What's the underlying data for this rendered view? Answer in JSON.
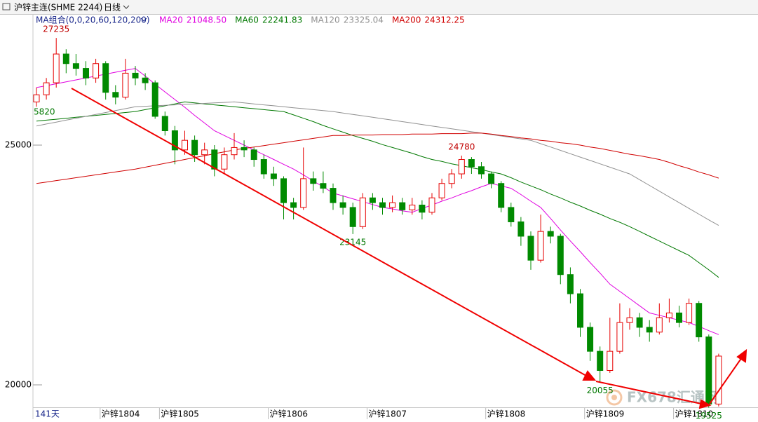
{
  "chart_data": {
    "type": "candlestick",
    "title": "沪锌主连(SHME 2244)",
    "period": "日线",
    "indicator": "MA组合(0,0,20,60,120,200)",
    "day_count": "141天",
    "side_label": "5820",
    "watermark": "FX678汇通网",
    "up_color": "#e60000",
    "down_color": "#008a00",
    "ylim": [
      19284,
      27734
    ],
    "yticks": [
      20000,
      25000
    ],
    "categories": [
      null,
      null,
      null,
      null,
      null,
      null,
      null,
      null,
      "沪锌1804",
      null,
      null,
      null,
      null,
      null,
      "沪锌1805",
      null,
      null,
      null,
      null,
      null,
      null,
      null,
      null,
      null,
      null,
      "沪锌1806",
      null,
      null,
      null,
      null,
      null,
      null,
      null,
      null,
      null,
      "沪锌1807",
      null,
      null,
      null,
      null,
      null,
      null,
      null,
      null,
      null,
      null,
      null,
      "沪锌1808",
      null,
      null,
      null,
      null,
      null,
      null,
      null,
      null,
      null,
      "沪锌1809",
      null,
      null,
      null,
      null,
      null,
      null,
      null,
      null,
      "沪锌1810",
      null,
      null,
      null
    ],
    "candles": [
      [
        25900,
        26200,
        25800,
        26050
      ],
      [
        26050,
        26400,
        25950,
        26300
      ],
      [
        26300,
        27235,
        26200,
        26900
      ],
      [
        26900,
        27000,
        26500,
        26700
      ],
      [
        26700,
        26900,
        26450,
        26600
      ],
      [
        26600,
        26750,
        26250,
        26400
      ],
      [
        26400,
        26800,
        26300,
        26700
      ],
      [
        26700,
        26750,
        25950,
        26100
      ],
      [
        26100,
        26250,
        25850,
        26000
      ],
      [
        26000,
        26800,
        25950,
        26500
      ],
      [
        26500,
        26650,
        26250,
        26400
      ],
      [
        26400,
        26500,
        26150,
        26300
      ],
      [
        26300,
        26350,
        25550,
        25600
      ],
      [
        25600,
        25700,
        25200,
        25300
      ],
      [
        25300,
        25400,
        24600,
        24900
      ],
      [
        24900,
        25300,
        24800,
        25100
      ],
      [
        25100,
        25200,
        24650,
        24800
      ],
      [
        24800,
        25050,
        24600,
        24900
      ],
      [
        24900,
        25000,
        24350,
        24500
      ],
      [
        24500,
        24950,
        24400,
        24800
      ],
      [
        24800,
        25250,
        24700,
        24950
      ],
      [
        24950,
        25100,
        24750,
        24900
      ],
      [
        24900,
        24950,
        24550,
        24700
      ],
      [
        24700,
        24800,
        24300,
        24400
      ],
      [
        24400,
        24550,
        24150,
        24300
      ],
      [
        24300,
        24350,
        23450,
        23800
      ],
      [
        23800,
        23900,
        23450,
        23700
      ],
      [
        23700,
        24950,
        23650,
        24300
      ],
      [
        24300,
        24450,
        24050,
        24200
      ],
      [
        24200,
        24450,
        24000,
        24100
      ],
      [
        24100,
        24200,
        23650,
        23800
      ],
      [
        23800,
        23950,
        23550,
        23700
      ],
      [
        23700,
        23800,
        23145,
        23300
      ],
      [
        23300,
        24000,
        23250,
        23900
      ],
      [
        23900,
        24000,
        23650,
        23800
      ],
      [
        23800,
        23900,
        23550,
        23700
      ],
      [
        23700,
        23950,
        23600,
        23800
      ],
      [
        23800,
        23900,
        23550,
        23650
      ],
      [
        23650,
        23900,
        23550,
        23750
      ],
      [
        23750,
        23850,
        23450,
        23600
      ],
      [
        23600,
        24000,
        23550,
        23900
      ],
      [
        23900,
        24300,
        23850,
        24200
      ],
      [
        24200,
        24500,
        24100,
        24400
      ],
      [
        24400,
        24780,
        24300,
        24700
      ],
      [
        24700,
        24750,
        24400,
        24550
      ],
      [
        24550,
        24650,
        24300,
        24400
      ],
      [
        24400,
        24450,
        24100,
        24200
      ],
      [
        24200,
        24250,
        23600,
        23700
      ],
      [
        23700,
        23800,
        23300,
        23400
      ],
      [
        23400,
        23500,
        22900,
        23100
      ],
      [
        23100,
        23200,
        22400,
        22600
      ],
      [
        22600,
        23550,
        22550,
        23200
      ],
      [
        23200,
        23300,
        22950,
        23100
      ],
      [
        23100,
        23150,
        22100,
        22300
      ],
      [
        22300,
        22450,
        21700,
        21900
      ],
      [
        21900,
        22000,
        21000,
        21200
      ],
      [
        21200,
        21300,
        20500,
        20700
      ],
      [
        20700,
        20800,
        20055,
        20300
      ],
      [
        20300,
        21400,
        20250,
        20700
      ],
      [
        20700,
        21700,
        20650,
        21300
      ],
      [
        21300,
        21600,
        21150,
        21400
      ],
      [
        21400,
        21500,
        21000,
        21200
      ],
      [
        21200,
        21350,
        20900,
        21100
      ],
      [
        21100,
        21700,
        21050,
        21400
      ],
      [
        21400,
        21800,
        21300,
        21500
      ],
      [
        21500,
        21650,
        21200,
        21300
      ],
      [
        21300,
        21800,
        21250,
        21700
      ],
      [
        21700,
        21750,
        20900,
        21000
      ],
      [
        21000,
        21050,
        19525,
        19600
      ],
      [
        19600,
        20650,
        19550,
        20600
      ]
    ],
    "series": [
      {
        "name": "MA20",
        "color": "#e000e0",
        "last_label": "21048.50",
        "values": [
          26200,
          26240,
          26280,
          26320,
          26360,
          26400,
          26440,
          26480,
          26520,
          26560,
          26600,
          26440,
          26270,
          26110,
          25950,
          25790,
          25620,
          25460,
          25300,
          25200,
          25100,
          25000,
          24900,
          24800,
          24700,
          24600,
          24500,
          24380,
          24250,
          24130,
          24000,
          23940,
          23880,
          23820,
          23760,
          23700,
          23670,
          23630,
          23600,
          23680,
          23750,
          23830,
          23900,
          23980,
          24050,
          24130,
          24200,
          24150,
          24100,
          23970,
          23830,
          23700,
          23470,
          23230,
          23000,
          22780,
          22550,
          22330,
          22100,
          21950,
          21800,
          21650,
          21500,
          21450,
          21400,
          21350,
          21300,
          21220,
          21130,
          21048.5
        ]
      },
      {
        "name": "MA60",
        "color": "#007800",
        "last_label": "22241.83",
        "values": [
          25500,
          25520,
          25540,
          25560,
          25580,
          25600,
          25620,
          25640,
          25660,
          25680,
          25700,
          25740,
          25780,
          25820,
          25860,
          25900,
          25880,
          25860,
          25840,
          25820,
          25800,
          25780,
          25760,
          25740,
          25720,
          25700,
          25630,
          25560,
          25490,
          25410,
          25340,
          25270,
          25200,
          25140,
          25080,
          25010,
          24950,
          24890,
          24830,
          24760,
          24700,
          24660,
          24610,
          24570,
          24530,
          24490,
          24440,
          24400,
          24320,
          24230,
          24150,
          24070,
          23980,
          23900,
          23810,
          23730,
          23640,
          23560,
          23470,
          23390,
          23300,
          23200,
          23100,
          23000,
          22900,
          22800,
          22700,
          22550,
          22400,
          22241.83
        ]
      },
      {
        "name": "MA120",
        "color": "#909090",
        "last_label": "23325.04",
        "values": [
          25400,
          25440,
          25480,
          25520,
          25560,
          25600,
          25640,
          25680,
          25720,
          25760,
          25800,
          25810,
          25820,
          25830,
          25840,
          25850,
          25860,
          25870,
          25880,
          25890,
          25900,
          25880,
          25860,
          25840,
          25820,
          25800,
          25780,
          25760,
          25740,
          25720,
          25700,
          25670,
          25640,
          25610,
          25580,
          25550,
          25520,
          25490,
          25460,
          25430,
          25400,
          25370,
          25340,
          25310,
          25280,
          25250,
          25220,
          25190,
          25160,
          25130,
          25100,
          25030,
          24960,
          24890,
          24820,
          24750,
          24680,
          24610,
          24540,
          24470,
          24400,
          24280,
          24160,
          24040,
          23920,
          23800,
          23680,
          23560,
          23440,
          23325.04
        ]
      },
      {
        "name": "MA200",
        "color": "#d00000",
        "last_label": "24312.25",
        "values": [
          24200,
          24230,
          24260,
          24290,
          24320,
          24350,
          24380,
          24410,
          24440,
          24470,
          24500,
          24540,
          24580,
          24620,
          24660,
          24700,
          24740,
          24780,
          24820,
          24860,
          24900,
          24930,
          24960,
          24990,
          25020,
          25050,
          25080,
          25110,
          25140,
          25170,
          25200,
          25200,
          25210,
          25210,
          25210,
          25220,
          25220,
          25220,
          25230,
          25230,
          25230,
          25240,
          25240,
          25240,
          25250,
          25250,
          25230,
          25200,
          25180,
          25150,
          25130,
          25100,
          25080,
          25050,
          25030,
          25000,
          24960,
          24930,
          24890,
          24850,
          24810,
          24780,
          24740,
          24700,
          24640,
          24570,
          24510,
          24440,
          24380,
          24312.25
        ]
      }
    ],
    "annotations": [
      {
        "label": "27235",
        "value": 27235,
        "color": "#c00000"
      },
      {
        "label": "23145",
        "value": 23145,
        "color": "#007800"
      },
      {
        "label": "24780",
        "value": 24780,
        "color": "#c00000"
      },
      {
        "label": "20055",
        "value": 20055,
        "color": "#007800"
      },
      {
        "label": "19525",
        "value": 19525,
        "color": "#007800"
      }
    ]
  }
}
